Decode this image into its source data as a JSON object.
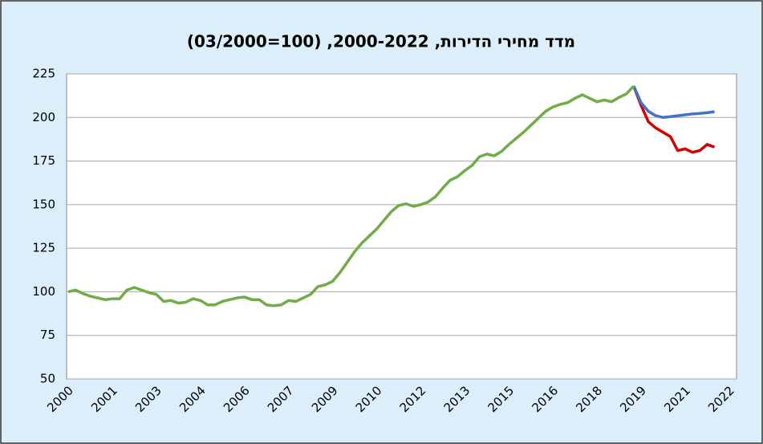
{
  "chart_data": {
    "type": "line",
    "title": "מדד מחירי הדירות, 2000-2022, (100=03/2000)",
    "categories": [
      "2000",
      null,
      null,
      null,
      null,
      null,
      "2001",
      null,
      null,
      null,
      null,
      null,
      "2003",
      null,
      null,
      null,
      null,
      null,
      "2004",
      null,
      null,
      null,
      null,
      null,
      "2006",
      null,
      null,
      null,
      null,
      null,
      "2007",
      null,
      null,
      null,
      null,
      null,
      "2009",
      null,
      null,
      null,
      null,
      null,
      "2010",
      null,
      null,
      null,
      null,
      null,
      "2012",
      null,
      null,
      null,
      null,
      null,
      "2013",
      null,
      null,
      null,
      null,
      null,
      "2015",
      null,
      null,
      null,
      null,
      null,
      "2016",
      null,
      null,
      null,
      null,
      null,
      "2018",
      null,
      null,
      null,
      null,
      null,
      "2019",
      null,
      null,
      null,
      null,
      null,
      "2021",
      null,
      null,
      null,
      null,
      null,
      "2022",
      null
    ],
    "series": [
      {
        "color": "#70ad47",
        "values": [
          100,
          101,
          99,
          97.5,
          96.5,
          95.5,
          96,
          96,
          101,
          102.5,
          101,
          99.5,
          98.5,
          94.5,
          95,
          93.5,
          94,
          96,
          95,
          92.5,
          92.5,
          94.5,
          95.5,
          96.5,
          97,
          95.5,
          95.5,
          92.5,
          92,
          92.5,
          95,
          94.5,
          96.5,
          98.5,
          103,
          104,
          106,
          111,
          117,
          123,
          128,
          132,
          136,
          141,
          146,
          149.5,
          150.5,
          149,
          150,
          151.5,
          154.5,
          159.5,
          164,
          166,
          169.5,
          172.5,
          177.5,
          179,
          178,
          180.5,
          184.5,
          188,
          191.5,
          195.5,
          199.5,
          203.5,
          206,
          207.5,
          208.5,
          211,
          213,
          211,
          209,
          210,
          209,
          211.5,
          213.5,
          218,
          null,
          null,
          null,
          null,
          null,
          null,
          null,
          null,
          null,
          null,
          null,
          null,
          null,
          null
        ]
      },
      {
        "color": "#d40000",
        "values": [
          null,
          null,
          null,
          null,
          null,
          null,
          null,
          null,
          null,
          null,
          null,
          null,
          null,
          null,
          null,
          null,
          null,
          null,
          null,
          null,
          null,
          null,
          null,
          null,
          null,
          null,
          null,
          null,
          null,
          null,
          null,
          null,
          null,
          null,
          null,
          null,
          null,
          null,
          null,
          null,
          null,
          null,
          null,
          null,
          null,
          null,
          null,
          null,
          null,
          null,
          null,
          null,
          null,
          null,
          null,
          null,
          null,
          null,
          null,
          null,
          null,
          null,
          null,
          null,
          null,
          null,
          null,
          null,
          null,
          null,
          null,
          null,
          null,
          null,
          null,
          null,
          null,
          218,
          207,
          197.5,
          194,
          191.5,
          189,
          181,
          182,
          180,
          181,
          184.5,
          183,
          null,
          null,
          null
        ]
      },
      {
        "color": "#4472c4",
        "values": [
          null,
          null,
          null,
          null,
          null,
          null,
          null,
          null,
          null,
          null,
          null,
          null,
          null,
          null,
          null,
          null,
          null,
          null,
          null,
          null,
          null,
          null,
          null,
          null,
          null,
          null,
          null,
          null,
          null,
          null,
          null,
          null,
          null,
          null,
          null,
          null,
          null,
          null,
          null,
          null,
          null,
          null,
          null,
          null,
          null,
          null,
          null,
          null,
          null,
          null,
          null,
          null,
          null,
          null,
          null,
          null,
          null,
          null,
          null,
          null,
          null,
          null,
          null,
          null,
          null,
          null,
          null,
          null,
          null,
          null,
          null,
          null,
          null,
          null,
          null,
          null,
          null,
          218,
          208.5,
          203.5,
          201,
          200,
          200.5,
          201,
          201.5,
          202,
          202.3,
          202.7,
          203.3,
          null,
          null,
          null
        ]
      }
    ],
    "ylim": [
      50,
      225
    ],
    "yticks": [
      50,
      75,
      100,
      125,
      150,
      175,
      200,
      225
    ],
    "grid": true
  }
}
